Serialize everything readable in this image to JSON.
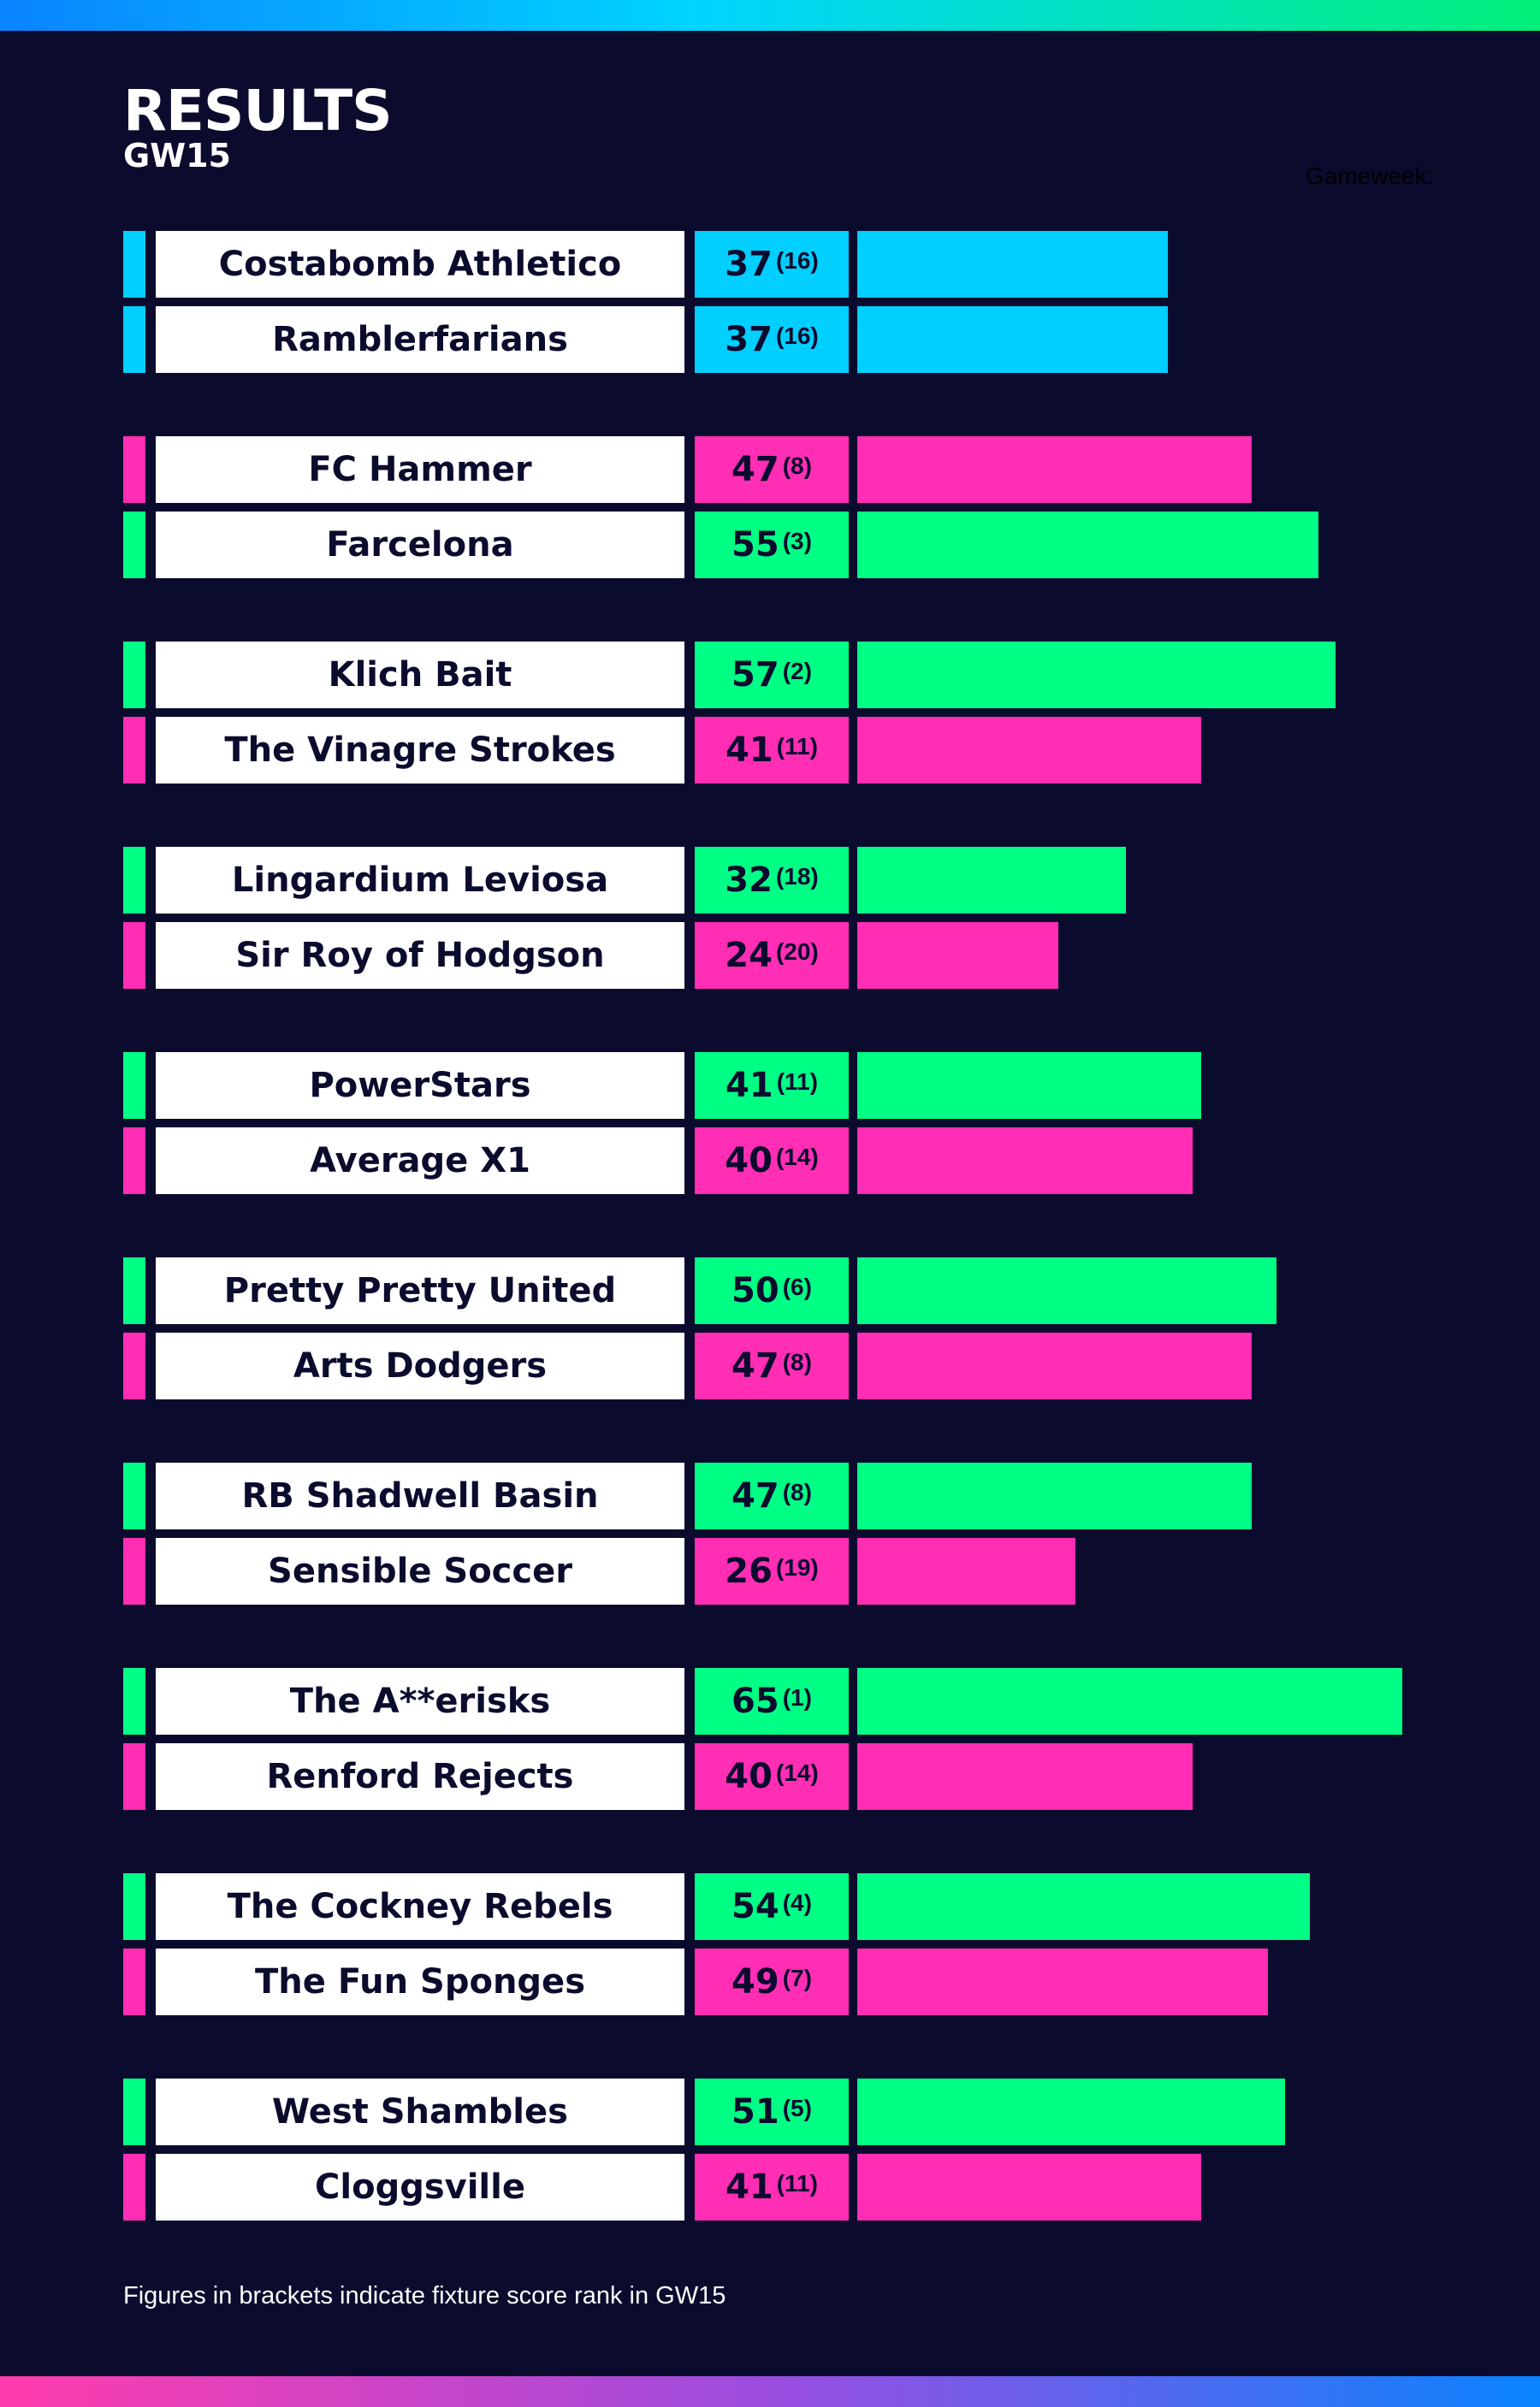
{
  "header": {
    "title": "RESULTS",
    "subtitle": "GW15",
    "gameweek_label": "Gameweek:"
  },
  "footnote": "Figures in brackets indicate fixture score rank in GW15",
  "colors": {
    "background": "#0b0b2e",
    "winner": "#00ff85",
    "loser": "#ff2eb4",
    "draw": "#00cfff",
    "name_bg": "#ffffff",
    "text_dark": "#0b0b2e"
  },
  "chart_data": {
    "type": "bar",
    "title": "RESULTS",
    "subtitle": "GW15",
    "xlabel": "",
    "ylabel": "",
    "xlim": [
      0,
      65
    ],
    "grid": false,
    "legend": "none",
    "fixtures": [
      {
        "home": {
          "team": "Costabomb Athletico",
          "score": 37,
          "rank": "(16)",
          "outcome": "draw"
        },
        "away": {
          "team": "Ramblerfarians",
          "score": 37,
          "rank": "(16)",
          "outcome": "draw"
        }
      },
      {
        "home": {
          "team": "FC Hammer",
          "score": 47,
          "rank": "(8)",
          "outcome": "loss"
        },
        "away": {
          "team": "Farcelona",
          "score": 55,
          "rank": "(3)",
          "outcome": "win"
        }
      },
      {
        "home": {
          "team": "Klich Bait",
          "score": 57,
          "rank": "(2)",
          "outcome": "win"
        },
        "away": {
          "team": "The Vinagre Strokes",
          "score": 41,
          "rank": "(11)",
          "outcome": "loss"
        }
      },
      {
        "home": {
          "team": "Lingardium Leviosa",
          "score": 32,
          "rank": "(18)",
          "outcome": "win"
        },
        "away": {
          "team": "Sir Roy of Hodgson",
          "score": 24,
          "rank": "(20)",
          "outcome": "loss"
        }
      },
      {
        "home": {
          "team": "PowerStars",
          "score": 41,
          "rank": "(11)",
          "outcome": "win"
        },
        "away": {
          "team": "Average X1",
          "score": 40,
          "rank": "(14)",
          "outcome": "loss"
        }
      },
      {
        "home": {
          "team": "Pretty Pretty United",
          "score": 50,
          "rank": "(6)",
          "outcome": "win"
        },
        "away": {
          "team": "Arts Dodgers",
          "score": 47,
          "rank": "(8)",
          "outcome": "loss"
        }
      },
      {
        "home": {
          "team": "RB Shadwell Basin",
          "score": 47,
          "rank": "(8)",
          "outcome": "win"
        },
        "away": {
          "team": "Sensible Soccer",
          "score": 26,
          "rank": "(19)",
          "outcome": "loss"
        }
      },
      {
        "home": {
          "team": "The A**erisks",
          "score": 65,
          "rank": "(1)",
          "outcome": "win"
        },
        "away": {
          "team": "Renford Rejects",
          "score": 40,
          "rank": "(14)",
          "outcome": "loss"
        }
      },
      {
        "home": {
          "team": "The Cockney Rebels",
          "score": 54,
          "rank": "(4)",
          "outcome": "win"
        },
        "away": {
          "team": "The Fun Sponges",
          "score": 49,
          "rank": "(7)",
          "outcome": "loss"
        }
      },
      {
        "home": {
          "team": "West Shambles",
          "score": 51,
          "rank": "(5)",
          "outcome": "win"
        },
        "away": {
          "team": "Cloggsville",
          "score": 41,
          "rank": "(11)",
          "outcome": "loss"
        }
      }
    ]
  }
}
